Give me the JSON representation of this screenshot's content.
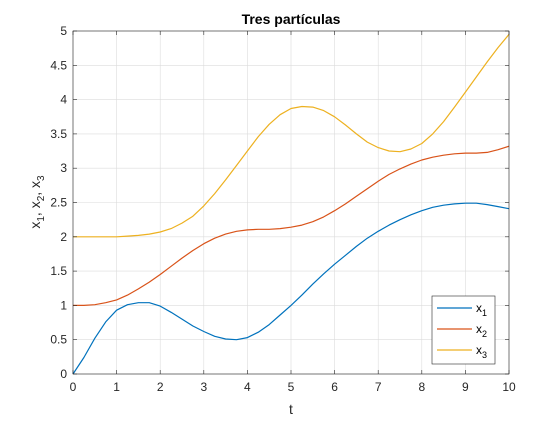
{
  "chart_data": {
    "type": "line",
    "title": "Tres partículas",
    "xlabel": "t",
    "ylabel": {
      "base": "x",
      "subs": [
        "1",
        "2",
        "3"
      ],
      "sep": ", "
    },
    "xlim": [
      0,
      10
    ],
    "ylim": [
      0,
      5
    ],
    "xticks": [
      "0",
      "1",
      "2",
      "3",
      "4",
      "5",
      "6",
      "7",
      "8",
      "9",
      "10"
    ],
    "yticks": [
      "0",
      "0.5",
      "1",
      "1.5",
      "2",
      "2.5",
      "3",
      "3.5",
      "4",
      "4.5",
      "5"
    ],
    "grid": true,
    "legend_position": "bottom-right",
    "x": [
      0,
      0.25,
      0.5,
      0.75,
      1,
      1.25,
      1.5,
      1.75,
      2,
      2.25,
      2.5,
      2.75,
      3,
      3.25,
      3.5,
      3.75,
      4,
      4.25,
      4.5,
      4.75,
      5,
      5.25,
      5.5,
      5.75,
      6,
      6.25,
      6.5,
      6.75,
      7,
      7.25,
      7.5,
      7.75,
      8,
      8.25,
      8.5,
      8.75,
      9,
      9.25,
      9.5,
      9.75,
      10
    ],
    "series": [
      {
        "name": "x1",
        "label_base": "x",
        "label_sub": "1",
        "color": "#0072BD",
        "values": [
          0,
          0.24,
          0.52,
          0.76,
          0.93,
          1.01,
          1.04,
          1.04,
          0.99,
          0.9,
          0.8,
          0.7,
          0.62,
          0.55,
          0.51,
          0.5,
          0.53,
          0.61,
          0.72,
          0.86,
          1.0,
          1.15,
          1.31,
          1.46,
          1.6,
          1.73,
          1.86,
          1.98,
          2.08,
          2.17,
          2.25,
          2.32,
          2.38,
          2.43,
          2.46,
          2.48,
          2.49,
          2.49,
          2.47,
          2.44,
          2.41
        ]
      },
      {
        "name": "x2",
        "label_base": "x",
        "label_sub": "2",
        "color": "#D95319",
        "values": [
          1.0,
          1.0,
          1.01,
          1.04,
          1.08,
          1.15,
          1.24,
          1.34,
          1.45,
          1.57,
          1.69,
          1.8,
          1.9,
          1.98,
          2.04,
          2.08,
          2.1,
          2.11,
          2.11,
          2.12,
          2.14,
          2.17,
          2.22,
          2.29,
          2.38,
          2.48,
          2.59,
          2.7,
          2.81,
          2.91,
          2.99,
          3.06,
          3.12,
          3.16,
          3.19,
          3.21,
          3.22,
          3.22,
          3.23,
          3.27,
          3.32
        ]
      },
      {
        "name": "x3",
        "label_base": "x",
        "label_sub": "3",
        "color": "#EDB120",
        "values": [
          2.0,
          2.0,
          2.0,
          2.0,
          2.0,
          2.01,
          2.02,
          2.04,
          2.07,
          2.12,
          2.2,
          2.3,
          2.45,
          2.63,
          2.83,
          3.04,
          3.25,
          3.46,
          3.64,
          3.78,
          3.87,
          3.9,
          3.89,
          3.84,
          3.75,
          3.63,
          3.5,
          3.38,
          3.3,
          3.25,
          3.24,
          3.28,
          3.36,
          3.5,
          3.68,
          3.89,
          4.11,
          4.33,
          4.55,
          4.76,
          4.95
        ]
      }
    ]
  }
}
